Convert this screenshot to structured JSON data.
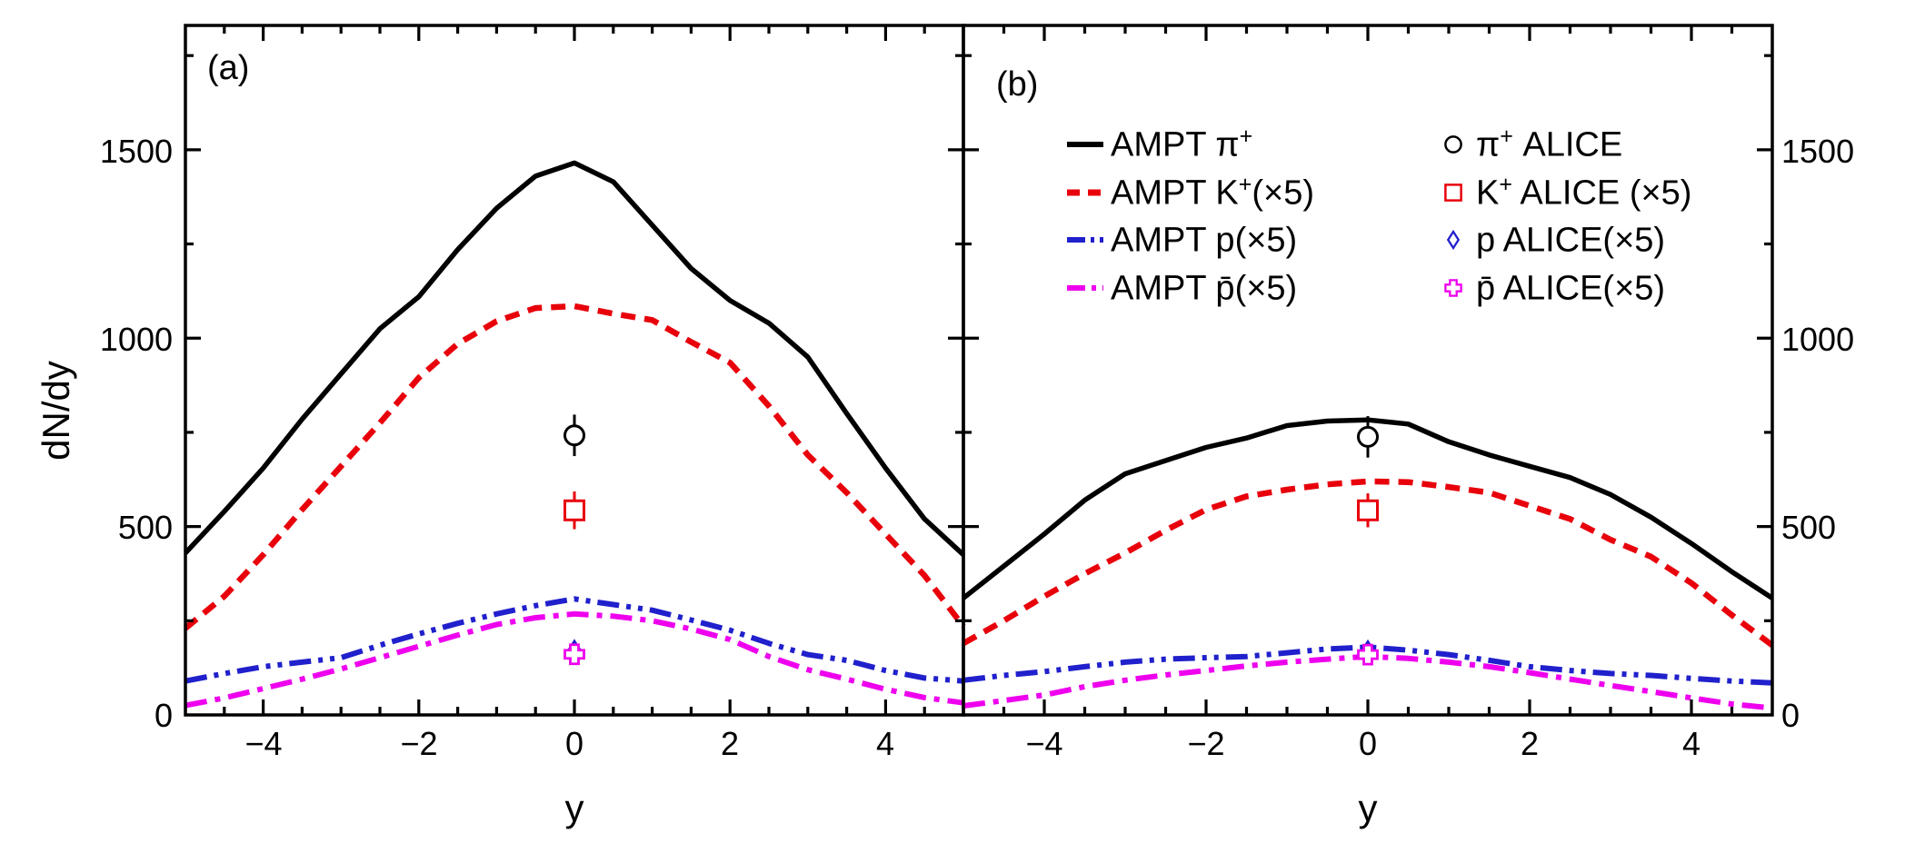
{
  "figure": {
    "background": "#ffffff",
    "panel_a_label": "(a)",
    "panel_b_label": "(b)"
  },
  "colors": {
    "pion": "#000000",
    "kaon": "#e8000b",
    "proton": "#2020cc",
    "antiproton": "#ee00ee"
  },
  "chart_data": {
    "type": "line",
    "title": "",
    "xlabel": "y",
    "ylabel": "dN/dy",
    "xlim": [
      -5,
      5
    ],
    "ylim": [
      0,
      1830
    ],
    "x_major_ticks": [
      -4,
      -2,
      0,
      2,
      4
    ],
    "x_minor_step": 0.5,
    "y_major_ticks": [
      500,
      1000,
      1500
    ],
    "y_minor_ticks": [
      250,
      750,
      1250,
      1750
    ],
    "x_tick_labels": [
      "−4",
      "−2",
      "0",
      "2",
      "4"
    ],
    "y_tick_labels_top_to_bottom": [
      "1500",
      "1000",
      "500",
      "0"
    ],
    "x": [
      -5,
      -4.5,
      -4,
      -3.5,
      -3,
      -2.5,
      -2,
      -1.5,
      -1,
      -0.5,
      0,
      0.5,
      1,
      1.5,
      2,
      2.5,
      3,
      3.5,
      4,
      4.5,
      5
    ],
    "panels": [
      {
        "id": "a",
        "label": "(a)",
        "series": [
          {
            "id": "ampt-pi",
            "name": "AMPT pi+",
            "color": "#000000",
            "style": "solid",
            "values": [
              430,
              540,
              655,
              785,
              905,
              1025,
              1110,
              1235,
              1345,
              1430,
              1465,
              1415,
              1300,
              1185,
              1100,
              1040,
              950,
              800,
              655,
              520,
              425
            ]
          },
          {
            "id": "ampt-k",
            "name": "AMPT K+ (x5)",
            "color": "#e8000b",
            "style": "dashed",
            "values": [
              230,
              315,
              425,
              545,
              660,
              775,
              895,
              985,
              1045,
              1080,
              1085,
              1065,
              1048,
              990,
              935,
              820,
              690,
              590,
              480,
              370,
              235
            ]
          },
          {
            "id": "ampt-p",
            "name": "AMPT p (x5)",
            "color": "#2020cc",
            "style": "dash-dot-dot",
            "values": [
              90,
              110,
              128,
              140,
              152,
              185,
              215,
              243,
              268,
              290,
              308,
              293,
              278,
              252,
              225,
              190,
              160,
              145,
              118,
              98,
              90
            ]
          },
          {
            "id": "ampt-pbar",
            "name": "AMPT pbar (x5)",
            "color": "#ee00ee",
            "style": "dash-dot",
            "values": [
              25,
              45,
              70,
              95,
              122,
              152,
              182,
              212,
              240,
              258,
              268,
              262,
              250,
              228,
              200,
              155,
              120,
              95,
              68,
              46,
              32
            ]
          }
        ],
        "points": [
          {
            "id": "alice-pi",
            "name": "pi+ ALICE",
            "marker": "circle",
            "color": "#000000",
            "x": 0,
            "y": 742,
            "yerr": 55
          },
          {
            "id": "alice-k",
            "name": "K+ ALICE (x5)",
            "marker": "square",
            "color": "#e8000b",
            "x": 0,
            "y": 543,
            "yerr": 50
          },
          {
            "id": "alice-p",
            "name": "p ALICE (x5)",
            "marker": "diamond",
            "color": "#2020cc",
            "x": 0,
            "y": 169,
            "yerr": 20
          },
          {
            "id": "alice-pbar",
            "name": "pbar ALICE (x5)",
            "marker": "cross",
            "color": "#ee00ee",
            "x": 0,
            "y": 161,
            "yerr": 20
          }
        ]
      },
      {
        "id": "b",
        "label": "(b)",
        "series": [
          {
            "id": "ampt-pi",
            "name": "AMPT pi+",
            "color": "#000000",
            "style": "solid",
            "values": [
              310,
              395,
              480,
              570,
              640,
              675,
              710,
              735,
              768,
              780,
              783,
              772,
              725,
              690,
              660,
              630,
              585,
              525,
              455,
              380,
              310
            ]
          },
          {
            "id": "ampt-k",
            "name": "AMPT K+ (x5)",
            "color": "#e8000b",
            "style": "dashed",
            "values": [
              190,
              250,
              315,
              375,
              430,
              490,
              545,
              580,
              598,
              612,
              620,
              618,
              605,
              590,
              555,
              520,
              465,
              420,
              350,
              265,
              185
            ]
          },
          {
            "id": "ampt-p",
            "name": "AMPT p (x5)",
            "color": "#2020cc",
            "style": "dash-dot-dot",
            "values": [
              92,
              105,
              115,
              128,
              140,
              148,
              152,
              155,
              165,
              175,
              180,
              172,
              160,
              145,
              128,
              118,
              110,
              105,
              97,
              90,
              85
            ]
          },
          {
            "id": "ampt-pbar",
            "name": "AMPT pbar (x5)",
            "color": "#ee00ee",
            "style": "dash-dot",
            "values": [
              24,
              38,
              53,
              75,
              92,
              106,
              118,
              130,
              140,
              148,
              155,
              150,
              140,
              128,
              112,
              95,
              78,
              62,
              45,
              29,
              18
            ]
          }
        ],
        "points": [
          {
            "id": "alice-pi",
            "name": "pi+ ALICE",
            "marker": "circle",
            "color": "#000000",
            "x": 0,
            "y": 738,
            "yerr": 55
          },
          {
            "id": "alice-k",
            "name": "K+ ALICE (x5)",
            "marker": "square",
            "color": "#e8000b",
            "x": 0,
            "y": 543,
            "yerr": 45
          },
          {
            "id": "alice-p",
            "name": "p ALICE (x5)",
            "marker": "diamond",
            "color": "#2020cc",
            "x": 0,
            "y": 168,
            "yerr": 18
          },
          {
            "id": "alice-pbar",
            "name": "pbar ALICE (x5)",
            "marker": "cross",
            "color": "#ee00ee",
            "x": 0,
            "y": 160,
            "yerr": 18
          }
        ]
      }
    ],
    "legend": {
      "position": "upper area of panel (b)",
      "ampt": [
        {
          "pre": "AMPT π",
          "sup": "+",
          "post": "",
          "color": "#000000",
          "style": "solid"
        },
        {
          "pre": "AMPT K",
          "sup": "+",
          "post": "(×5)",
          "color": "#e8000b",
          "style": "dashed"
        },
        {
          "pre": "AMPT p(×5)",
          "sup": "",
          "post": "",
          "color": "#2020cc",
          "style": "dash-dot-dot"
        },
        {
          "pre": "AMPT p̄(×5)",
          "sup": "",
          "post": "",
          "color": "#ee00ee",
          "style": "dash-dot"
        }
      ],
      "alice": [
        {
          "pre": "π",
          "sup": "+",
          "post": " ALICE",
          "marker": "circle",
          "color": "#000000"
        },
        {
          "pre": "K",
          "sup": "+",
          "post": " ALICE (×5)",
          "marker": "square",
          "color": "#e8000b"
        },
        {
          "pre": "p ALICE(×5)",
          "sup": "",
          "post": "",
          "marker": "diamond",
          "color": "#2020cc"
        },
        {
          "pre": "p̄ ALICE(×5)",
          "sup": "",
          "post": "",
          "marker": "cross",
          "color": "#ee00ee"
        }
      ]
    }
  }
}
